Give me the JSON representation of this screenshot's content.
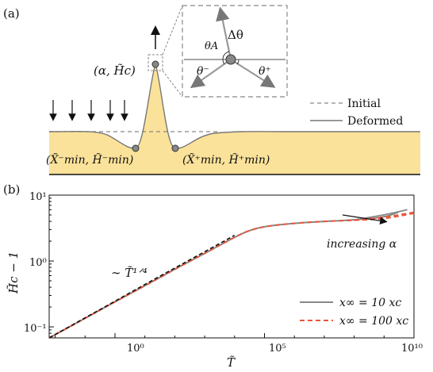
{
  "panel_a": {
    "label": "(a)",
    "peak_label": "(α, H̃c)",
    "min_left_label": "(X̃⁻min, H̃⁻min)",
    "min_right_label": "(X̃⁺min, H̃⁺min)",
    "inset": {
      "theta_A": "θA",
      "delta_theta": "Δθ",
      "theta_minus": "θ⁻",
      "theta_plus": "θ⁺"
    },
    "legend": {
      "initial": "Initial",
      "deformed": "Deformed"
    },
    "colors": {
      "fluid": "#fbe29a",
      "deformed_line": "#777777",
      "initial_line": "#888888"
    }
  },
  "panel_b": {
    "label": "(b)",
    "xlabel": "T̃",
    "ylabel": "H̃c − 1",
    "xticks": [
      "10⁰",
      "10⁵",
      "10¹⁰"
    ],
    "yticks": [
      "10⁻¹",
      "10⁰",
      "10¹"
    ],
    "power_law_label": "∼ T̃¹ᐟ⁴",
    "arrow_label": "increasing α",
    "legend": [
      {
        "label": "x∞ = 10 xc",
        "color": "#888888",
        "style": "solid"
      },
      {
        "label": "x∞ = 100 xc",
        "color": "#e8553a",
        "style": "dashed"
      }
    ]
  },
  "chart_data": {
    "type": "line",
    "xscale": "log",
    "yscale": "log",
    "xlim": [
      0.0063,
      10000000000
    ],
    "ylim": [
      0.068,
      10
    ],
    "xlabel": "T̃",
    "ylabel": "H̃c − 1",
    "xticks": [
      1,
      100000,
      10000000000
    ],
    "yticks": [
      0.1,
      1,
      10
    ],
    "series": [
      {
        "name": "x∞ = 10 xc",
        "color": "#888888",
        "style": "solid",
        "x": [
          0.0063,
          0.03,
          0.1,
          1,
          10,
          100,
          1000,
          10000,
          30000,
          100000,
          1000000,
          10000000,
          100000000,
          1000000000,
          3000000000
        ],
        "y": [
          0.068,
          0.1,
          0.135,
          0.24,
          0.42,
          0.75,
          1.3,
          2.3,
          2.9,
          3.35,
          3.75,
          4.0,
          4.2,
          4.6,
          5.5
        ]
      },
      {
        "name": "x∞ = 100 xc",
        "color": "#e8553a",
        "style": "dashed",
        "x": [
          0.0063,
          0.03,
          0.1,
          1,
          10,
          100,
          1000,
          10000,
          30000,
          100000,
          1000000,
          10000000,
          100000000,
          1000000000,
          10000000000
        ],
        "y": [
          0.068,
          0.1,
          0.135,
          0.24,
          0.42,
          0.75,
          1.3,
          2.3,
          2.9,
          3.35,
          3.75,
          4.0,
          4.15,
          4.35,
          5.3
        ]
      },
      {
        "name": "",
        "color": "#111111",
        "style": "dashed",
        "x": [
          0.0063,
          0.1,
          1,
          10,
          100,
          1000,
          10000
        ],
        "y": [
          0.068,
          0.137,
          0.245,
          0.44,
          0.78,
          1.38,
          2.45
        ]
      }
    ],
    "extra_curves": [
      {
        "color": "#888888",
        "x": [
          100000000,
          1000000000,
          6000000000
        ],
        "y": [
          4.2,
          5.0,
          6.0
        ]
      },
      {
        "color": "#e8553a",
        "x": [
          100000000,
          1000000000,
          10000000000
        ],
        "y": [
          4.15,
          4.6,
          5.5
        ]
      }
    ]
  }
}
